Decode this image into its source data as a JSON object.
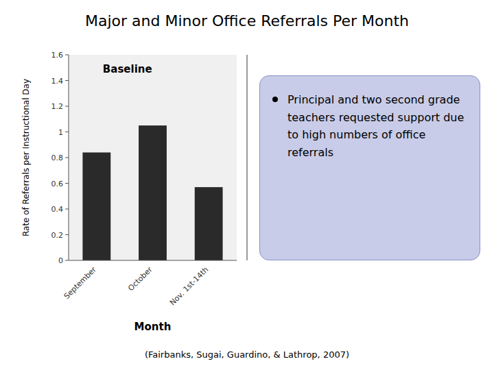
{
  "chart_data": {
    "type": "bar",
    "title": "Major and Minor Office Referrals Per Month",
    "x_label": "Month",
    "y_label": "Rate of Referrals per Instructional Day",
    "categories": [
      "September",
      "October",
      "Nov. 1st-14th"
    ],
    "values": [
      0.84,
      1.05,
      0.57
    ],
    "color": "#2a2a2a",
    "ylim": [
      0,
      1.6
    ],
    "yticks": [
      0,
      0.2,
      0.4,
      0.6,
      0.8,
      1,
      1.2,
      1.4,
      1.6
    ],
    "grid": false,
    "annotations": [
      "Baseline",
      "Principal and two second grade teachers requested support due to high numbers of office referrals",
      "(Fairbanks, Sugai, Guardino, & Lathrop, 2007)"
    ]
  }
}
